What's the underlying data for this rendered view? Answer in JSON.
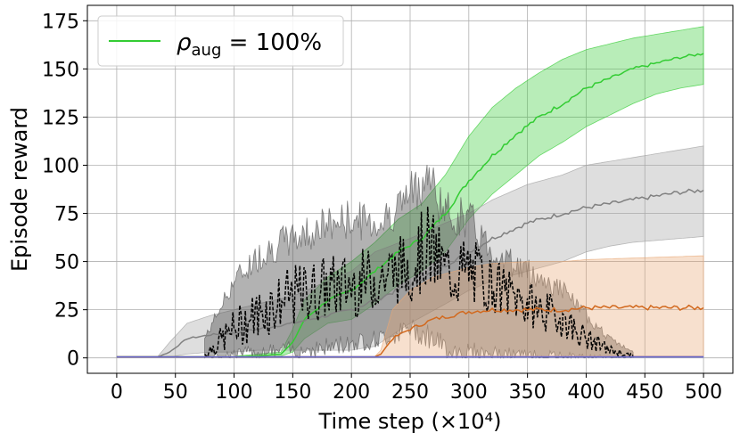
{
  "chart_data": {
    "type": "line",
    "xlabel": "Time step (×10⁴)",
    "ylabel": "Episode reward",
    "xlim": [
      -25,
      525
    ],
    "ylim": [
      -8,
      183
    ],
    "xticks": [
      0,
      50,
      100,
      150,
      200,
      250,
      300,
      350,
      400,
      450,
      500
    ],
    "yticks": [
      0,
      25,
      50,
      75,
      100,
      125,
      150,
      175
    ],
    "grid": true,
    "legend": {
      "placement": "top-left",
      "entries": [
        {
          "label": "ρ_aug = 100%",
          "color": "#33cc33"
        }
      ]
    },
    "series": [
      {
        "color": "#33cc33",
        "band_color": "#33cc33",
        "style": "solid",
        "x": [
          0,
          50,
          100,
          120,
          140,
          150,
          160,
          180,
          200,
          220,
          240,
          260,
          280,
          300,
          320,
          340,
          360,
          380,
          400,
          420,
          440,
          460,
          480,
          500
        ],
        "y": [
          0.5,
          0.5,
          0.5,
          1,
          2,
          8,
          20,
          30,
          35,
          45,
          55,
          62,
          75,
          92,
          105,
          116,
          125,
          132,
          140,
          145,
          150,
          153,
          156,
          158
        ],
        "y_low": [
          0.3,
          0.3,
          0.3,
          0.5,
          1,
          3,
          10,
          18,
          20,
          28,
          38,
          45,
          55,
          72,
          85,
          95,
          105,
          112,
          120,
          126,
          132,
          137,
          140,
          142
        ],
        "y_high": [
          0.8,
          0.8,
          0.8,
          2,
          3,
          15,
          30,
          42,
          50,
          60,
          72,
          80,
          95,
          115,
          130,
          140,
          148,
          155,
          160,
          163,
          166,
          168,
          170,
          172
        ]
      },
      {
        "color": "#808080",
        "band_color": "#a0a0a0",
        "style": "solid",
        "x": [
          0,
          35,
          45,
          60,
          80,
          100,
          120,
          150,
          180,
          200,
          220,
          250,
          280,
          300,
          320,
          350,
          380,
          400,
          420,
          440,
          460,
          480,
          500
        ],
        "y": [
          0.5,
          0.5,
          3,
          10,
          12,
          13,
          15,
          18,
          22,
          25,
          30,
          38,
          48,
          55,
          62,
          70,
          75,
          78,
          80,
          82,
          84,
          86,
          87
        ],
        "y_low": [
          0.3,
          0.3,
          0.5,
          2,
          3,
          3,
          4,
          4,
          4,
          4,
          6,
          18,
          28,
          35,
          40,
          45,
          50,
          55,
          58,
          60,
          61,
          62,
          63
        ],
        "y_high": [
          0.8,
          0.8,
          8,
          18,
          22,
          25,
          28,
          32,
          40,
          45,
          55,
          62,
          70,
          75,
          82,
          90,
          95,
          100,
          102,
          104,
          106,
          108,
          110
        ]
      },
      {
        "color": "#555555",
        "band_color": "#555555",
        "style": "noisy",
        "x": [
          75,
          100,
          125,
          150,
          175,
          200,
          225,
          250,
          265,
          280,
          300,
          320,
          350,
          380,
          400,
          420,
          440
        ],
        "y": [
          2,
          15,
          25,
          32,
          36,
          38,
          42,
          48,
          58,
          45,
          45,
          38,
          28,
          20,
          10,
          4,
          1
        ],
        "y_low": [
          0.5,
          2,
          3,
          4,
          5,
          8,
          10,
          15,
          12,
          5,
          3,
          2,
          1,
          0.5,
          0.3,
          0.2,
          0.2
        ],
        "y_high": [
          10,
          40,
          55,
          62,
          68,
          72,
          70,
          85,
          95,
          75,
          72,
          55,
          45,
          35,
          22,
          10,
          3
        ]
      },
      {
        "color": "#d2691e",
        "band_color": "#e8a774",
        "style": "solid",
        "x": [
          0,
          220,
          225,
          235,
          250,
          270,
          300,
          320,
          350,
          380,
          400,
          450,
          500
        ],
        "y": [
          0.5,
          0.5,
          2,
          10,
          15,
          20,
          24,
          25,
          25,
          25,
          26,
          26,
          26
        ],
        "y_low": [
          0.3,
          0.3,
          0.3,
          0.5,
          0.5,
          0.5,
          1,
          1,
          1,
          1,
          1,
          1,
          1
        ],
        "y_high": [
          0.8,
          0.8,
          4,
          25,
          35,
          42,
          47,
          49,
          50,
          50,
          51,
          52,
          53
        ]
      },
      {
        "color": "#6666cc",
        "band_color": "#9999dd",
        "style": "solid",
        "x": [
          0,
          500
        ],
        "y": [
          0.5,
          0.5
        ],
        "y_low": [
          0.3,
          0.3
        ],
        "y_high": [
          0.8,
          0.8
        ]
      }
    ]
  }
}
